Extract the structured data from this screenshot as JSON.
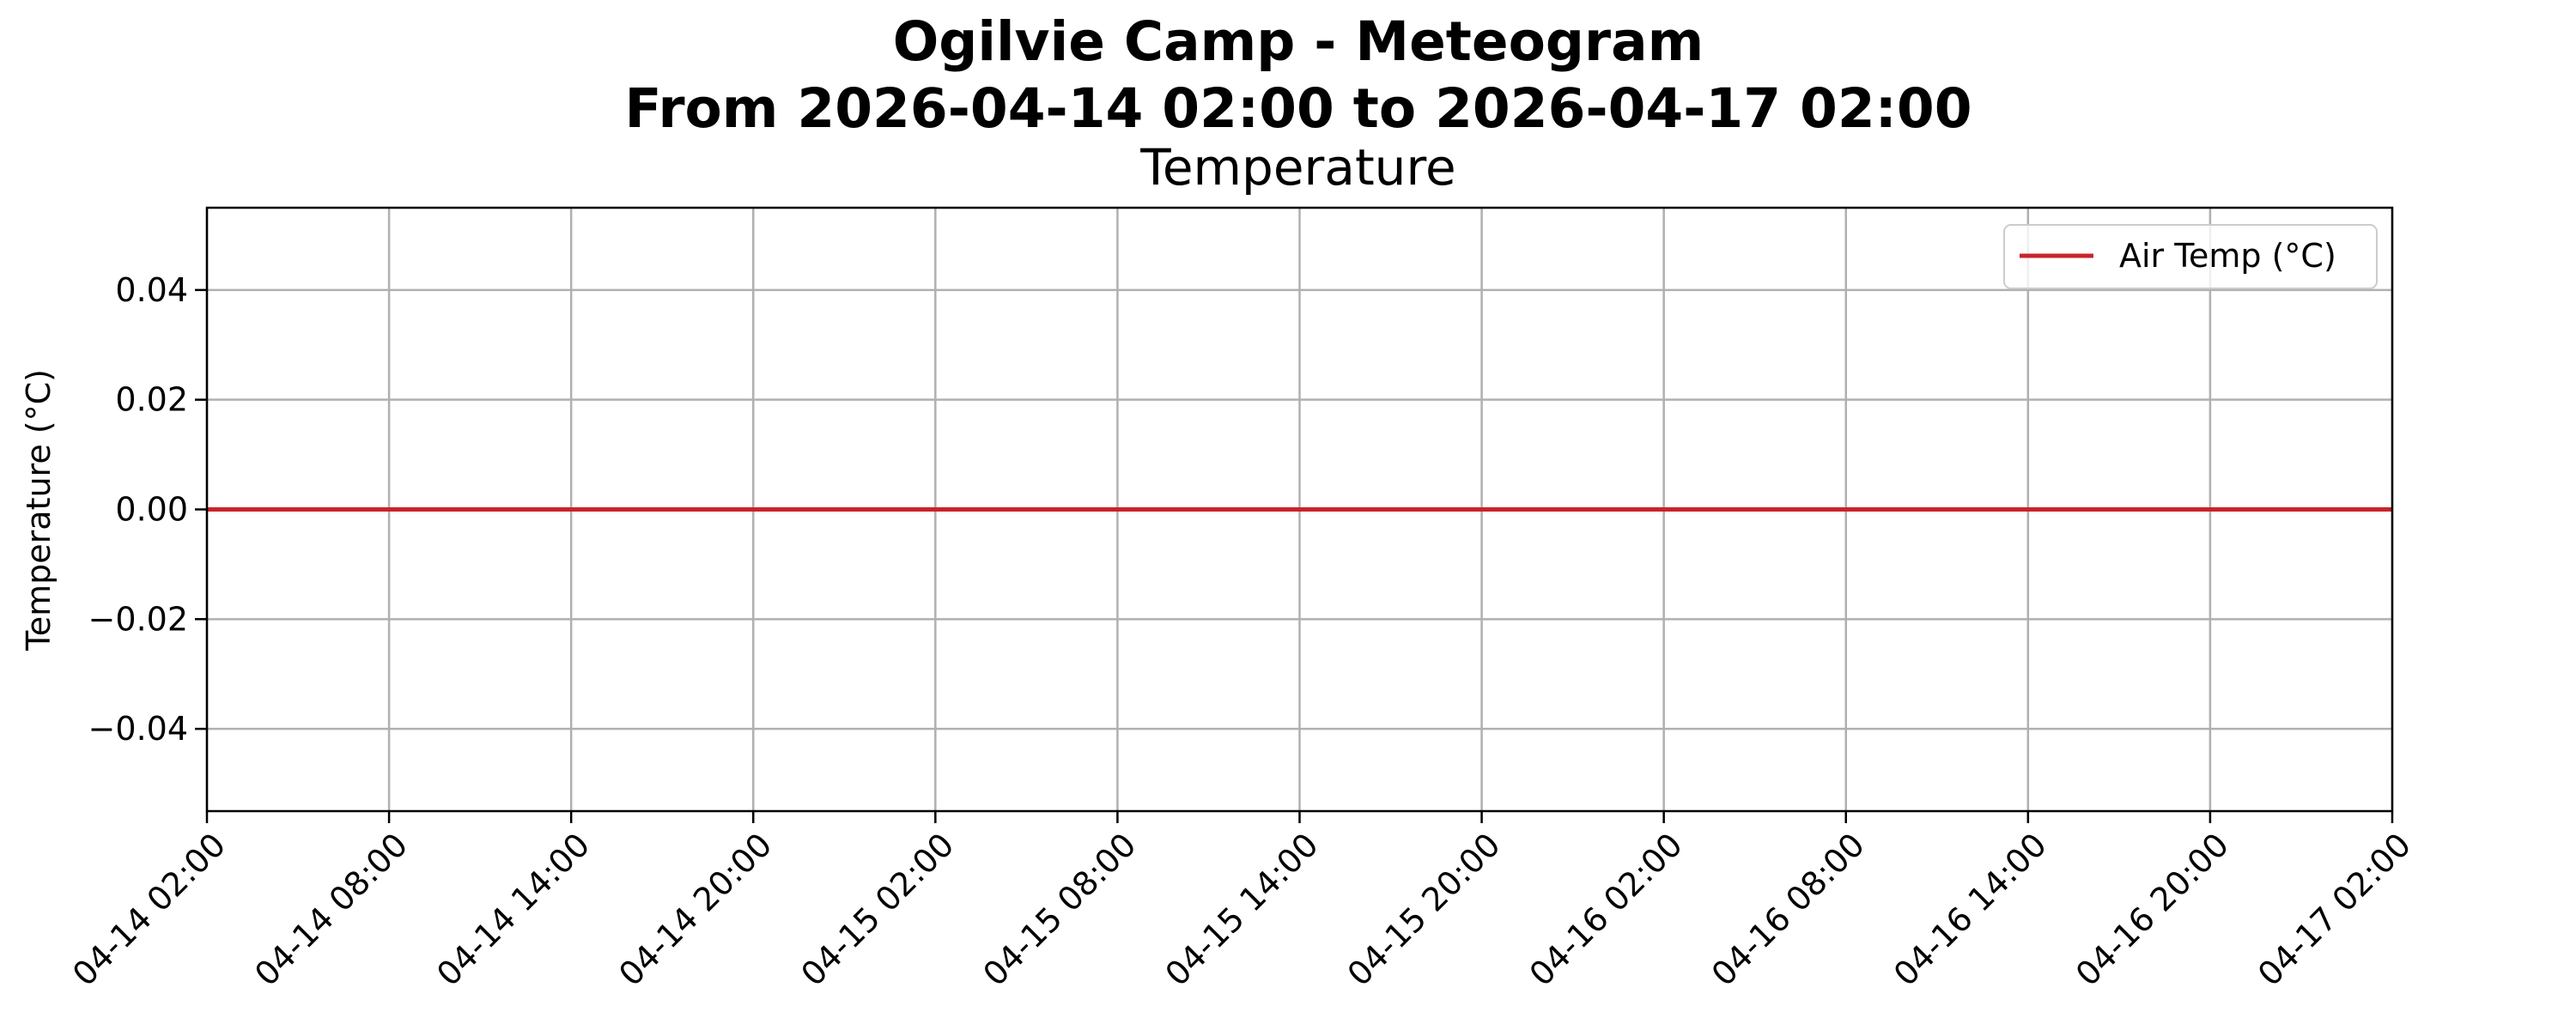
{
  "chart_data": {
    "type": "line",
    "title_line1": "Ogilvie Camp - Meteogram",
    "title_line2": "From 2026-04-14 02:00 to 2026-04-17 02:00",
    "axes_title": "Temperature",
    "ylabel": "Temperature (°C)",
    "xlabel": "",
    "xlim": [
      "2026-04-14 02:00",
      "2026-04-17 02:00"
    ],
    "ylim": [
      -0.055,
      0.055
    ],
    "x_ticks": [
      {
        "value": "2026-04-14 02:00",
        "label": "04-14 02:00"
      },
      {
        "value": "2026-04-14 08:00",
        "label": "04-14 08:00"
      },
      {
        "value": "2026-04-14 14:00",
        "label": "04-14 14:00"
      },
      {
        "value": "2026-04-14 20:00",
        "label": "04-14 20:00"
      },
      {
        "value": "2026-04-15 02:00",
        "label": "04-15 02:00"
      },
      {
        "value": "2026-04-15 08:00",
        "label": "04-15 08:00"
      },
      {
        "value": "2026-04-15 14:00",
        "label": "04-15 14:00"
      },
      {
        "value": "2026-04-15 20:00",
        "label": "04-15 20:00"
      },
      {
        "value": "2026-04-16 02:00",
        "label": "04-16 02:00"
      },
      {
        "value": "2026-04-16 08:00",
        "label": "04-16 08:00"
      },
      {
        "value": "2026-04-16 14:00",
        "label": "04-16 14:00"
      },
      {
        "value": "2026-04-16 20:00",
        "label": "04-16 20:00"
      },
      {
        "value": "2026-04-17 02:00",
        "label": "04-17 02:00"
      }
    ],
    "y_ticks": [
      {
        "value": 0.04,
        "label": "0.04"
      },
      {
        "value": 0.02,
        "label": "0.02"
      },
      {
        "value": 0.0,
        "label": "0.00"
      },
      {
        "value": -0.02,
        "label": "−0.02"
      },
      {
        "value": -0.04,
        "label": "−0.04"
      }
    ],
    "grid": true,
    "legend_position": "top-right",
    "series": [
      {
        "name": "Air Temp (°C)",
        "color": "#c8242b",
        "x": [
          "2026-04-14 02:00",
          "2026-04-17 02:00"
        ],
        "y": [
          0.0,
          0.0
        ]
      }
    ]
  }
}
